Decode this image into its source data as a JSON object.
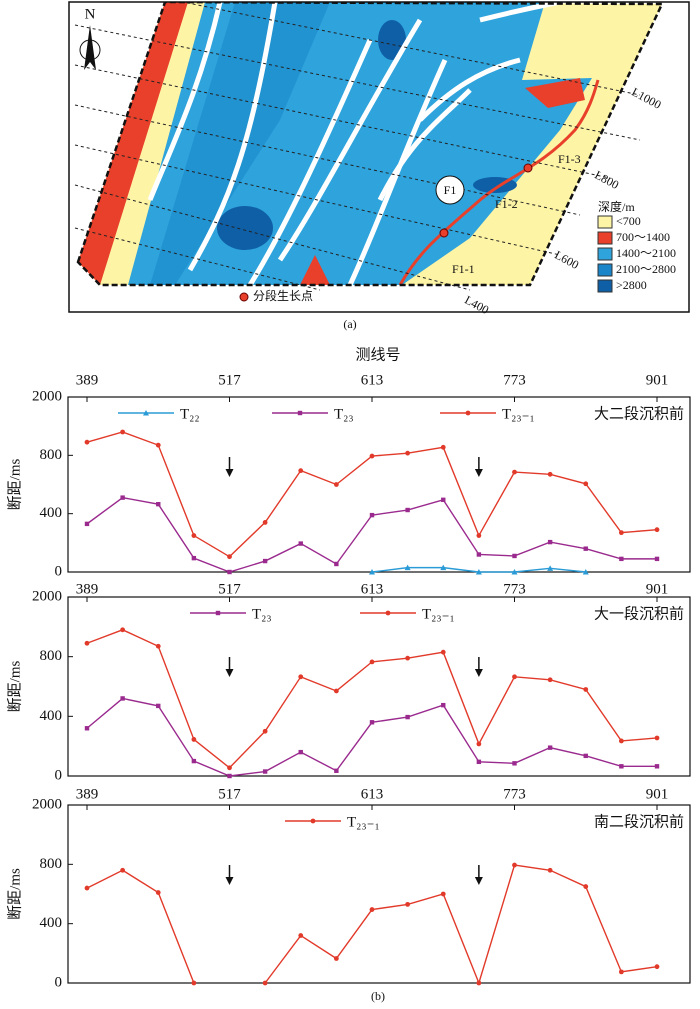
{
  "map": {
    "north": "N",
    "fault": "F1",
    "segments": [
      "F1-1",
      "F1-2",
      "F1-3"
    ],
    "lines": [
      "L400",
      "L600",
      "L800",
      "L1000"
    ],
    "legend_title": "深度/m",
    "legend": [
      "<700",
      "700～1400",
      "1400～2100",
      "2100～2800",
      ">2800"
    ],
    "legend_colors": [
      "#fdf4a6",
      "#e8402a",
      "#2ea3dc",
      "#1a86c9",
      "#0f5fa6"
    ],
    "point_label": "分段生长点",
    "caption": "(a)"
  },
  "caption_b": "(b)",
  "chart_data": [
    {
      "type": "line",
      "xlabel": "测线号",
      "title": "大二段沉积前",
      "ylabel": "断距/ms",
      "categories": [
        "389",
        null,
        null,
        null,
        "517",
        null,
        null,
        null,
        "613",
        null,
        null,
        null,
        "773",
        null,
        null,
        null,
        "901"
      ],
      "ylim": [
        0,
        1200
      ],
      "yticks": [
        0,
        400,
        800,
        {
          "value": 1200,
          "label": "2000"
        }
      ],
      "series": [
        {
          "name": "T₂₂",
          "color": "#2a9bd6",
          "marker": "triangle",
          "values": [
            null,
            null,
            null,
            null,
            null,
            null,
            null,
            null,
            0,
            30,
            30,
            0,
            0,
            25,
            0,
            null,
            null
          ]
        },
        {
          "name": "T₂₃",
          "color": "#9a2a8e",
          "marker": "square",
          "values": [
            330,
            510,
            465,
            95,
            0,
            75,
            195,
            55,
            390,
            425,
            495,
            120,
            110,
            205,
            160,
            90,
            90
          ]
        },
        {
          "name": "T₂₃₋₁",
          "color": "#e23a2a",
          "marker": "circle",
          "values": [
            890,
            960,
            870,
            250,
            105,
            340,
            695,
            600,
            795,
            815,
            855,
            250,
            685,
            670,
            605,
            270,
            290
          ]
        }
      ]
    },
    {
      "type": "line",
      "title": "大一段沉积前",
      "ylabel": "断距/ms",
      "categories": [
        "389",
        null,
        null,
        null,
        "517",
        null,
        null,
        null,
        "613",
        null,
        null,
        null,
        "773",
        null,
        null,
        null,
        "901"
      ],
      "ylim": [
        0,
        1200
      ],
      "yticks": [
        0,
        400,
        800,
        {
          "value": 1200,
          "label": "2000"
        }
      ],
      "series": [
        {
          "name": "T₂₃",
          "color": "#9a2a8e",
          "marker": "square",
          "values": [
            320,
            520,
            470,
            100,
            0,
            30,
            160,
            35,
            360,
            395,
            475,
            95,
            85,
            190,
            135,
            65,
            65
          ]
        },
        {
          "name": "T₂₃₋₁",
          "color": "#e23a2a",
          "marker": "circle",
          "values": [
            890,
            980,
            870,
            245,
            55,
            300,
            665,
            570,
            765,
            790,
            830,
            215,
            665,
            645,
            580,
            235,
            255
          ]
        }
      ]
    },
    {
      "type": "line",
      "title": "南二段沉积前",
      "ylabel": "断距/ms",
      "categories": [
        "389",
        null,
        null,
        null,
        "517",
        null,
        null,
        null,
        "613",
        null,
        null,
        null,
        "773",
        null,
        null,
        null,
        "901"
      ],
      "ylim": [
        0,
        1200
      ],
      "yticks": [
        0,
        400,
        800,
        {
          "value": 1200,
          "label": "2000"
        }
      ],
      "series": [
        {
          "name": "T₂₃₋₁",
          "color": "#e23a2a",
          "marker": "circle",
          "values": [
            640,
            760,
            610,
            0,
            null,
            0,
            320,
            165,
            495,
            530,
            600,
            0,
            795,
            760,
            650,
            75,
            110
          ]
        }
      ]
    }
  ]
}
